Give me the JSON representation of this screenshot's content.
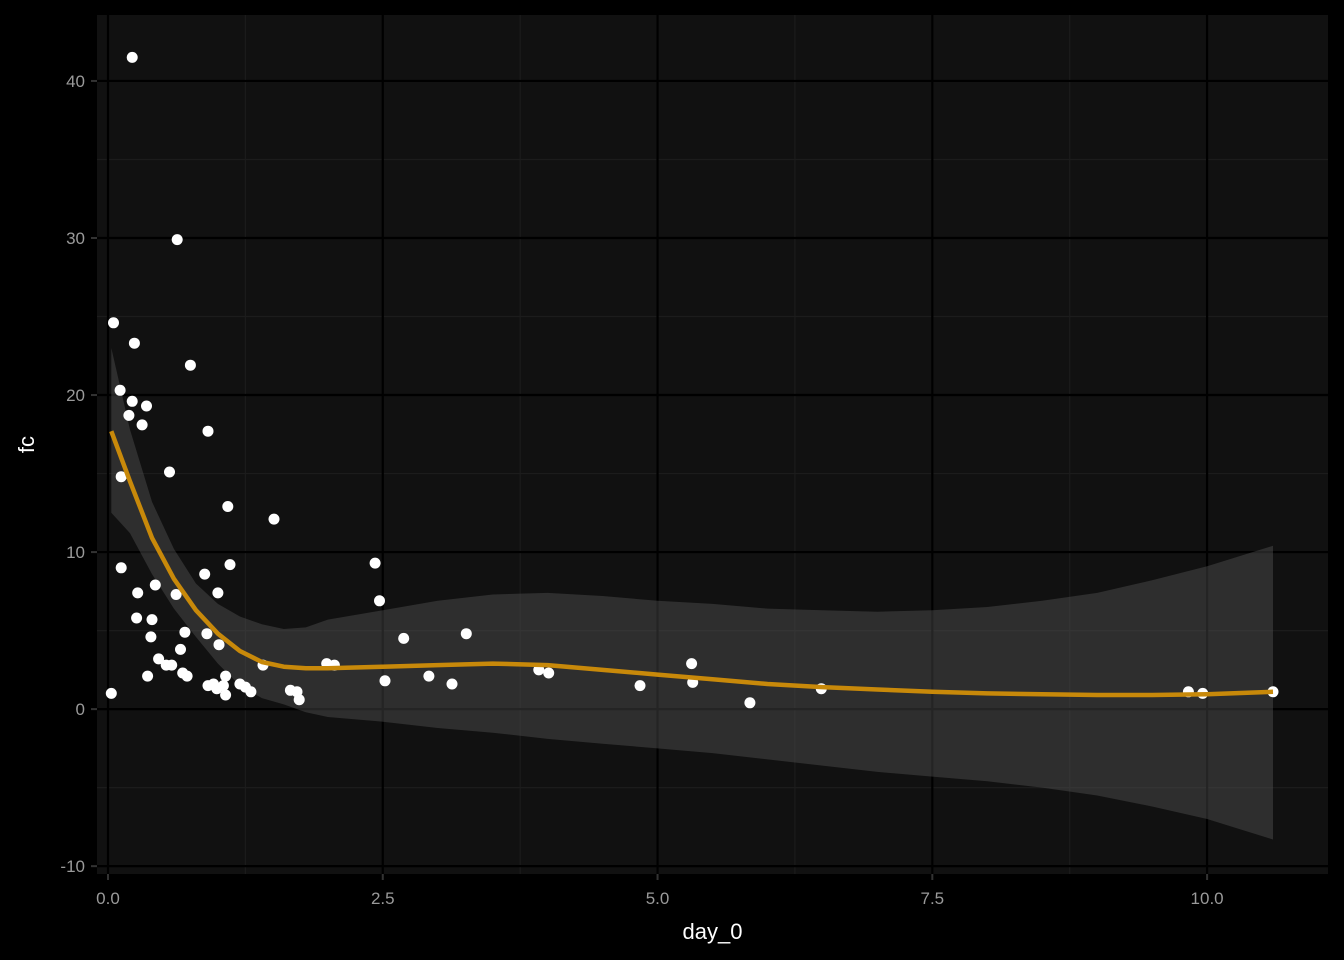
{
  "chart_data": {
    "type": "scatter",
    "xlabel": "day_0",
    "ylabel": "fc",
    "xlim": [
      -0.1,
      11.1
    ],
    "ylim": [
      -10.5,
      44.2
    ],
    "x_ticks": [
      0.0,
      2.5,
      5.0,
      7.5,
      10.0
    ],
    "x_tick_labels": [
      "0.0",
      "2.5",
      "5.0",
      "7.5",
      "10.0"
    ],
    "y_ticks": [
      -10,
      0,
      10,
      20,
      30,
      40
    ],
    "y_tick_labels": [
      "-10",
      "0",
      "10",
      "20",
      "30",
      "40"
    ],
    "grid": true,
    "colors": {
      "page_background": "#000000",
      "panel_background": "#111111",
      "grid_major": "#000000",
      "grid_minor": "#1c1c1c",
      "points": "#ffffff",
      "smooth_line": "#c8890a",
      "confidence_band": "#5a5a5a"
    },
    "points": [
      [
        0.22,
        41.5
      ],
      [
        0.63,
        29.9
      ],
      [
        0.05,
        24.6
      ],
      [
        0.24,
        23.3
      ],
      [
        0.75,
        21.9
      ],
      [
        0.11,
        20.3
      ],
      [
        0.22,
        19.6
      ],
      [
        0.35,
        19.3
      ],
      [
        0.19,
        18.7
      ],
      [
        0.31,
        18.1
      ],
      [
        0.91,
        17.7
      ],
      [
        0.56,
        15.1
      ],
      [
        0.12,
        14.8
      ],
      [
        1.09,
        12.9
      ],
      [
        1.51,
        12.1
      ],
      [
        1.11,
        9.2
      ],
      [
        2.43,
        9.3
      ],
      [
        0.12,
        9.0
      ],
      [
        0.88,
        8.6
      ],
      [
        0.43,
        7.9
      ],
      [
        0.27,
        7.4
      ],
      [
        1.0,
        7.4
      ],
      [
        0.62,
        7.3
      ],
      [
        2.47,
        6.9
      ],
      [
        0.26,
        5.8
      ],
      [
        0.4,
        5.7
      ],
      [
        0.7,
        4.9
      ],
      [
        0.9,
        4.8
      ],
      [
        3.26,
        4.8
      ],
      [
        0.39,
        4.6
      ],
      [
        2.69,
        4.5
      ],
      [
        1.01,
        4.1
      ],
      [
        0.66,
        3.8
      ],
      [
        0.46,
        3.2
      ],
      [
        5.31,
        2.9
      ],
      [
        0.53,
        2.8
      ],
      [
        0.58,
        2.8
      ],
      [
        1.41,
        2.8
      ],
      [
        1.99,
        2.9
      ],
      [
        2.06,
        2.8
      ],
      [
        3.92,
        2.5
      ],
      [
        4.01,
        2.3
      ],
      [
        0.68,
        2.3
      ],
      [
        0.72,
        2.1
      ],
      [
        1.07,
        2.1
      ],
      [
        0.36,
        2.1
      ],
      [
        2.92,
        2.1
      ],
      [
        2.52,
        1.8
      ],
      [
        0.91,
        1.5
      ],
      [
        0.96,
        1.6
      ],
      [
        3.13,
        1.6
      ],
      [
        1.2,
        1.6
      ],
      [
        1.25,
        1.4
      ],
      [
        0.99,
        1.3
      ],
      [
        1.05,
        1.5
      ],
      [
        5.32,
        1.7
      ],
      [
        4.84,
        1.5
      ],
      [
        1.3,
        1.1
      ],
      [
        1.66,
        1.2
      ],
      [
        1.72,
        1.1
      ],
      [
        6.49,
        1.3
      ],
      [
        9.83,
        1.1
      ],
      [
        9.96,
        1.0
      ],
      [
        10.6,
        1.1
      ],
      [
        0.03,
        1.0
      ],
      [
        1.07,
        0.9
      ],
      [
        1.74,
        0.6
      ],
      [
        5.84,
        0.4
      ]
    ],
    "smooth_fit": {
      "x": [
        0.03,
        0.2,
        0.4,
        0.6,
        0.8,
        1.0,
        1.2,
        1.4,
        1.6,
        1.8,
        2.0,
        2.5,
        3.0,
        3.5,
        4.0,
        4.5,
        5.0,
        5.5,
        6.0,
        6.5,
        7.0,
        7.5,
        8.0,
        8.5,
        9.0,
        9.5,
        10.0,
        10.6
      ],
      "y": [
        17.7,
        14.5,
        10.9,
        8.3,
        6.3,
        4.8,
        3.7,
        3.0,
        2.7,
        2.6,
        2.6,
        2.7,
        2.8,
        2.9,
        2.8,
        2.5,
        2.2,
        1.9,
        1.6,
        1.4,
        1.25,
        1.1,
        1.0,
        0.95,
        0.9,
        0.9,
        0.95,
        1.1
      ],
      "ymin": [
        12.5,
        11.2,
        8.6,
        6.4,
        4.6,
        2.9,
        1.5,
        0.7,
        0.3,
        -0.2,
        -0.5,
        -0.8,
        -1.2,
        -1.5,
        -1.9,
        -2.2,
        -2.5,
        -2.8,
        -3.2,
        -3.6,
        -4.0,
        -4.3,
        -4.6,
        -5.0,
        -5.5,
        -6.2,
        -7.0,
        -8.3
      ],
      "ymax": [
        23.0,
        17.8,
        13.2,
        10.2,
        8.0,
        6.7,
        5.9,
        5.4,
        5.1,
        5.2,
        5.7,
        6.3,
        6.9,
        7.3,
        7.4,
        7.2,
        6.9,
        6.7,
        6.4,
        6.3,
        6.2,
        6.3,
        6.5,
        6.9,
        7.4,
        8.2,
        9.1,
        10.4
      ]
    }
  }
}
